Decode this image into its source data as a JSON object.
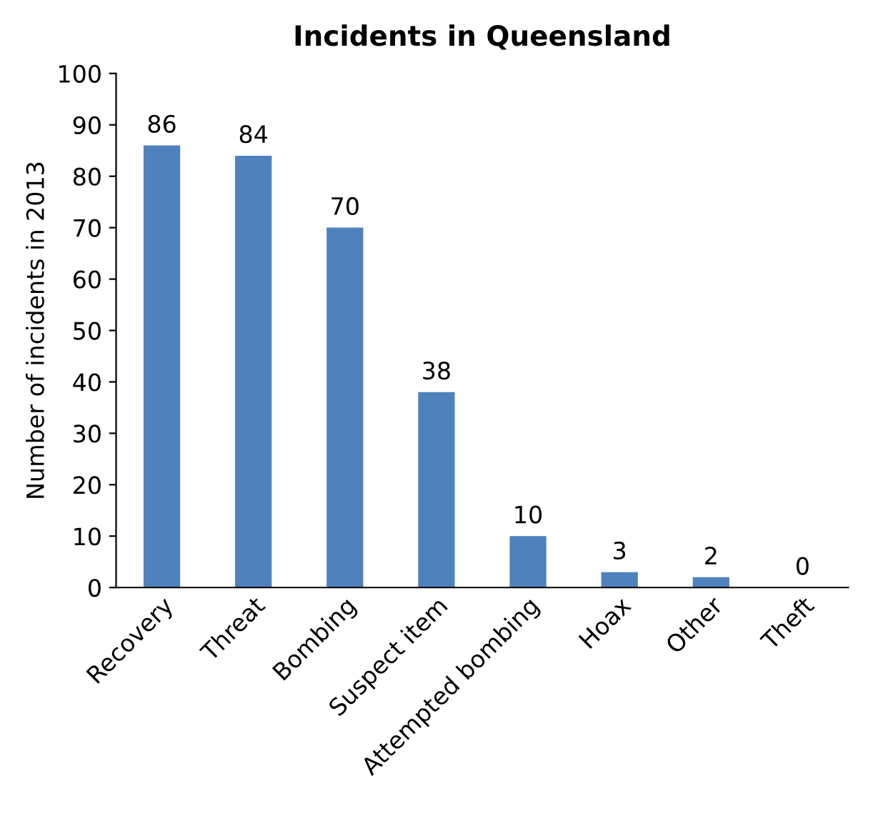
{
  "chart_data": {
    "type": "bar",
    "title": "Incidents in Queensland",
    "ylabel": "Number of incidents in 2013",
    "categories": [
      "Recovery",
      "Threat",
      "Bombing",
      "Suspect item",
      "Attempted bombing",
      "Hoax",
      "Other",
      "Theft"
    ],
    "values": [
      86,
      84,
      70,
      38,
      10,
      3,
      2,
      0
    ],
    "color": "#4f81bd",
    "ylim": [
      0,
      100
    ],
    "yticks": [
      0,
      10,
      20,
      30,
      40,
      50,
      60,
      70,
      80,
      90,
      100
    ],
    "grid": false,
    "data_labels": true
  }
}
